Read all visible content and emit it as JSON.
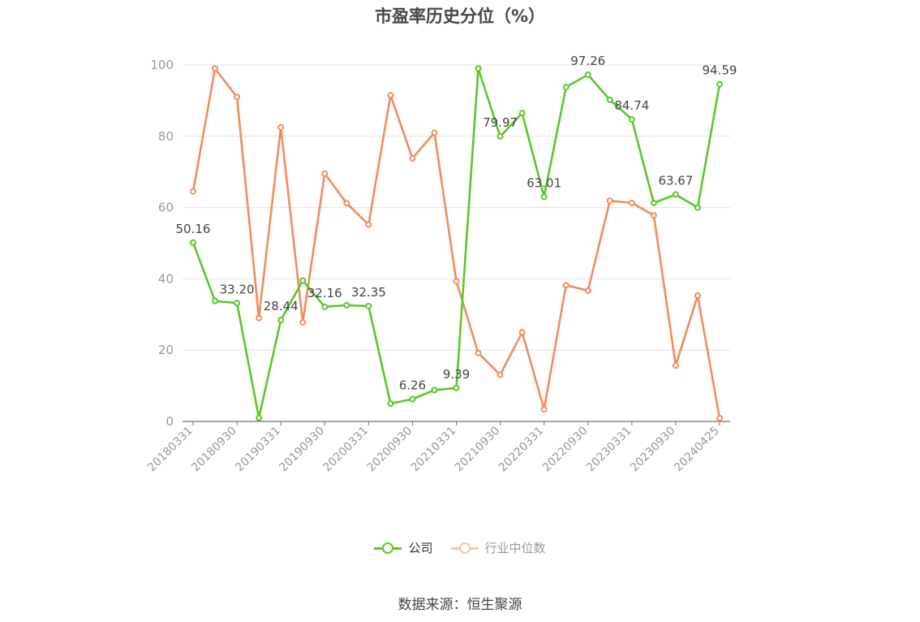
{
  "title": "市盈率历史分位（%）",
  "source": "数据来源：恒生聚源",
  "chart_data": {
    "type": "line",
    "title": "市盈率历史分位（%）",
    "ylim": [
      0,
      100
    ],
    "yticks": [
      0,
      20,
      40,
      60,
      80,
      100
    ],
    "grid": true,
    "legend": "bottom-center",
    "x_tick_labels": [
      "20180331",
      "20180930",
      "20190331",
      "20190930",
      "20200331",
      "20200930",
      "20210331",
      "20210930",
      "20220331",
      "20220930",
      "20230331",
      "20230930",
      "20240425"
    ],
    "x": [
      "20180331",
      "20180630",
      "20180930",
      "20181231",
      "20190331",
      "20190630",
      "20190930",
      "20191231",
      "20200331",
      "20200630",
      "20200930",
      "20201231",
      "20210331",
      "20210630",
      "20210930",
      "20211231",
      "20220331",
      "20220630",
      "20220930",
      "20221231",
      "20230331",
      "20230630",
      "20230930",
      "20231231",
      "20240425"
    ],
    "series": [
      {
        "name": "公司",
        "color": "#5ac828",
        "values": [
          50.16,
          33.8,
          33.2,
          1.0,
          28.44,
          39.5,
          32.16,
          32.6,
          32.35,
          5.0,
          6.26,
          8.8,
          9.39,
          99.0,
          79.97,
          86.5,
          63.01,
          93.8,
          97.26,
          90.2,
          84.74,
          61.3,
          63.67,
          60.0,
          94.59
        ],
        "labels": [
          "50.16",
          "",
          "33.20",
          "",
          "28.44",
          "",
          "32.16",
          "",
          "32.35",
          "",
          "6.26",
          "",
          "9.39",
          "",
          "79.97",
          "",
          "63.01",
          "",
          "97.26",
          "",
          "84.74",
          "",
          "63.67",
          "",
          "94.59"
        ]
      },
      {
        "name": "行业中位数",
        "color": "#f28c5e",
        "values": [
          64.5,
          99.0,
          91.0,
          29.0,
          82.5,
          27.8,
          69.5,
          61.2,
          55.2,
          91.5,
          73.8,
          81.0,
          39.3,
          19.2,
          13.1,
          25.0,
          3.4,
          38.2,
          36.7,
          61.9,
          61.3,
          57.8,
          15.7,
          35.3,
          0.9
        ]
      }
    ]
  }
}
